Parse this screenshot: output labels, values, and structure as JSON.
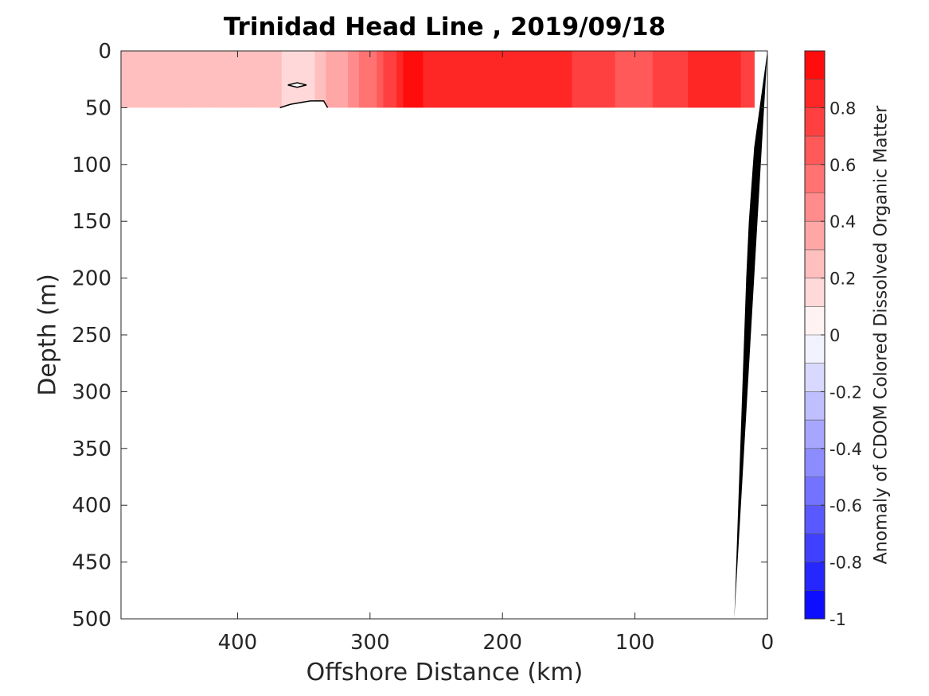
{
  "chart_data": {
    "type": "heatmap",
    "title": "Trinidad Head Line , 2019/09/18",
    "xlabel": "Offshore Distance (km)",
    "ylabel": "Depth (m)",
    "xlim": [
      488,
      0
    ],
    "ylim": [
      0,
      500
    ],
    "x_reversed": true,
    "y_reversed": true,
    "xticks": [
      400,
      300,
      200,
      100,
      0
    ],
    "yticks": [
      0,
      50,
      100,
      150,
      200,
      250,
      300,
      350,
      400,
      450,
      500
    ],
    "colorbar": {
      "label": "Anomaly of CDOM Colored Dissolved Organic Matter",
      "clim": [
        -1,
        1
      ],
      "ticks": [
        0.8,
        0.6,
        0.4,
        0.2,
        0,
        -0.2,
        -0.4,
        -0.6,
        -0.8,
        -1
      ],
      "low_color": "#0000ff",
      "high_color": "#ff0000",
      "levels": 20
    },
    "data_depth_range": [
      0,
      50
    ],
    "data_x_range": [
      488,
      10
    ],
    "profile_x": [
      488,
      450,
      400,
      350,
      325,
      300,
      270,
      240,
      200,
      165,
      130,
      100,
      60,
      25,
      10
    ],
    "profile_anomaly": [
      0.25,
      0.25,
      0.3,
      0.15,
      0.35,
      0.55,
      0.95,
      0.8,
      0.8,
      0.85,
      0.75,
      0.65,
      0.8,
      0.85,
      0.7
    ],
    "contour_zero": [
      {
        "x": [
          362,
          355,
          348,
          355,
          362
        ],
        "depth": [
          30,
          28,
          30,
          32,
          30
        ]
      },
      {
        "x": [
          368,
          360,
          345,
          335,
          332
        ],
        "depth": [
          50,
          47,
          44,
          44,
          50
        ]
      }
    ],
    "bathymetry": {
      "x": [
        10,
        14,
        16,
        19,
        25,
        0
      ],
      "depth": [
        85,
        150,
        200,
        300,
        500,
        0
      ]
    }
  }
}
